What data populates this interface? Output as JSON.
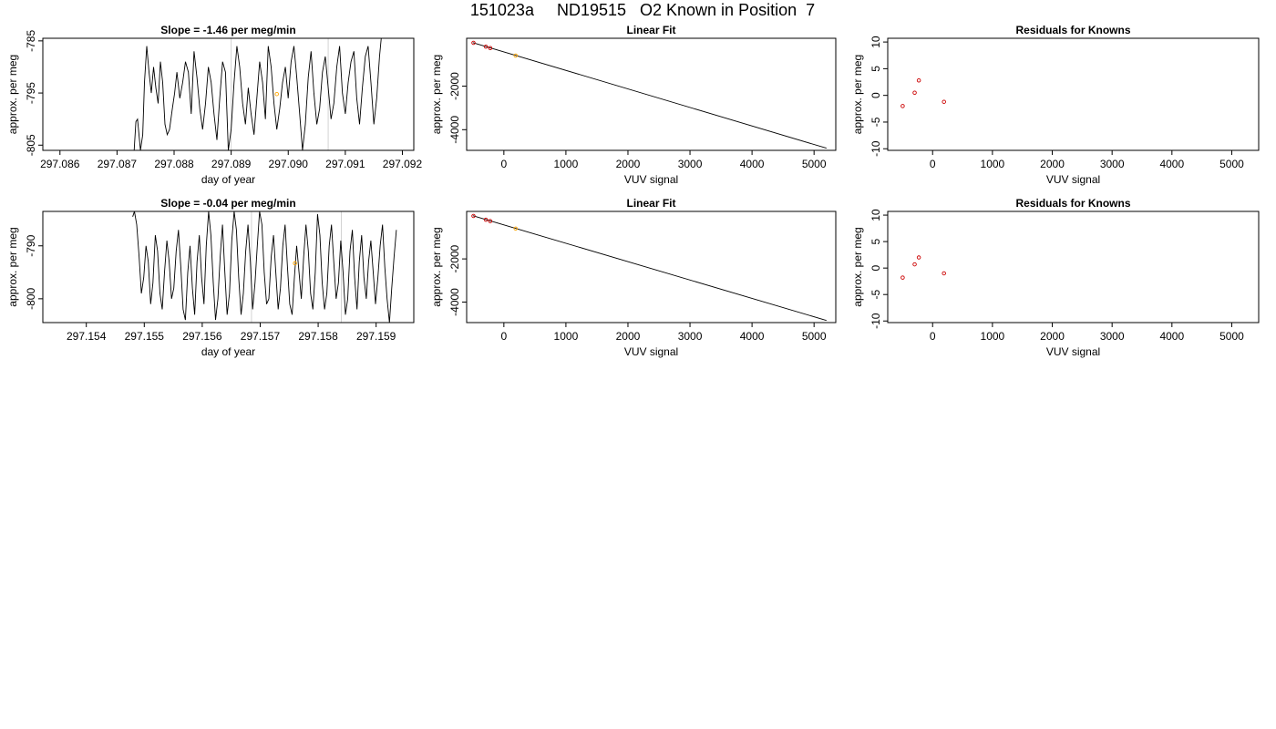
{
  "title": "151023a     ND19515   O2 Known in Position  7",
  "chart_data": [
    {
      "type": "line",
      "title": "Slope =  -1.46  per meg/min",
      "xlabel": "day of year",
      "ylabel": "approx. per meg",
      "xlim": [
        297.0857,
        297.0922
      ],
      "ylim": [
        -806,
        -784.5
      ],
      "xticks": [
        "297.086",
        "297.087",
        "297.088",
        "297.089",
        "297.090",
        "297.091",
        "297.092"
      ],
      "yticks": [
        "-785",
        "-795",
        "-805"
      ],
      "vlines": [
        297.089,
        297.0907
      ],
      "x": [
        297.0873,
        297.08733,
        297.08736,
        297.08741,
        297.08745,
        297.08748,
        297.08752,
        297.08756,
        297.0876,
        297.08764,
        297.08768,
        297.08772,
        297.08776,
        297.0878,
        297.08784,
        297.08788,
        297.08792,
        297.08797,
        297.08801,
        297.08805,
        297.0881,
        297.08815,
        297.0882,
        297.08825,
        297.0883,
        297.08835,
        297.0884,
        297.08845,
        297.0885,
        297.08855,
        297.0886,
        297.08865,
        297.0887,
        297.08875,
        297.0888,
        297.08885,
        297.0889,
        297.08895,
        297.089,
        297.08905,
        297.0891,
        297.08915,
        297.0892,
        297.08925,
        297.0893,
        297.08935,
        297.0894,
        297.08945,
        297.0895,
        297.08955,
        297.0896,
        297.08965,
        297.0897,
        297.08975,
        297.0898,
        297.08985,
        297.0899,
        297.08995,
        297.09,
        297.09005,
        297.0901,
        297.09015,
        297.0902,
        297.09025,
        297.0903,
        297.09035,
        297.0904,
        297.09045,
        297.0905,
        297.09055,
        297.0906,
        297.09065,
        297.0907,
        297.09075,
        297.0908,
        297.09085,
        297.0909,
        297.09095,
        297.091,
        297.09105,
        297.0911,
        297.09115,
        297.0912,
        297.09125,
        297.0913,
        297.09135,
        297.0914,
        297.09145,
        297.0915,
        297.09155,
        297.0916,
        297.09163
      ],
      "y": [
        -806,
        -800.5,
        -800,
        -806,
        -803,
        -793,
        -786,
        -791,
        -795,
        -790,
        -794,
        -797,
        -789,
        -793,
        -801,
        -803,
        -802,
        -798,
        -795,
        -791,
        -796,
        -793,
        -789,
        -791,
        -799,
        -787,
        -792,
        -798,
        -802,
        -797,
        -790,
        -793,
        -799,
        -804,
        -796,
        -789,
        -791,
        -806,
        -802,
        -793,
        -786,
        -790,
        -797,
        -801,
        -794,
        -799,
        -803,
        -796,
        -789,
        -793,
        -800,
        -786,
        -790,
        -797,
        -802,
        -798,
        -793,
        -790,
        -796,
        -789,
        -786,
        -792,
        -799,
        -806,
        -801,
        -792,
        -787,
        -795,
        -801,
        -798,
        -791,
        -788,
        -794,
        -800,
        -797,
        -790,
        -786,
        -795,
        -799,
        -793,
        -789,
        -787,
        -796,
        -801,
        -794,
        -788,
        -786,
        -793,
        -801,
        -796,
        -788,
        -784.5
      ],
      "highlight_points": [
        {
          "x": 297.0898,
          "y": -795.2,
          "color": "#FFA500"
        }
      ]
    },
    {
      "type": "scatter",
      "title": "Linear Fit",
      "xlabel": "VUV signal",
      "ylabel": "approx. per meg",
      "xlim": [
        -600,
        5350
      ],
      "ylim": [
        -4950,
        200
      ],
      "xticks": [
        0,
        1000,
        2000,
        3000,
        4000,
        5000
      ],
      "yticks": [
        -2000,
        -4000
      ],
      "fit_line": {
        "x": [
          -500,
          5200
        ],
        "y": [
          0,
          -4850
        ]
      },
      "points": [
        {
          "x": -490,
          "y": -10,
          "color": "#CC0000"
        },
        {
          "x": -290,
          "y": -185,
          "color": "#CC0000"
        },
        {
          "x": -220,
          "y": -250,
          "color": "#CC0000"
        },
        {
          "x": 190,
          "y": -595,
          "color": "#FFA500"
        }
      ]
    },
    {
      "type": "scatter",
      "title": "Residuals for Knowns",
      "xlabel": "VUV signal",
      "ylabel": "approx. per meg",
      "xlim": [
        -750,
        5450
      ],
      "ylim": [
        -10.3,
        10.7
      ],
      "xticks": [
        0,
        1000,
        2000,
        3000,
        4000,
        5000
      ],
      "yticks": [
        10,
        5,
        0,
        -5,
        -10
      ],
      "points": [
        {
          "x": -500,
          "y": -2.0,
          "color": "#CC0000"
        },
        {
          "x": -300,
          "y": 0.5,
          "color": "#CC0000"
        },
        {
          "x": -230,
          "y": 2.8,
          "color": "#CC0000"
        },
        {
          "x": 190,
          "y": -1.2,
          "color": "#CC0000"
        }
      ]
    },
    {
      "type": "line",
      "title": "Slope =  -0.04  per meg/min",
      "xlabel": "day of year",
      "ylabel": "approx. per meg",
      "xlim": [
        297.15325,
        297.15965
      ],
      "ylim": [
        -804.5,
        -783.5
      ],
      "xticks": [
        "297.154",
        "297.155",
        "297.156",
        "297.157",
        "297.158",
        "297.159"
      ],
      "yticks": [
        "-790",
        "-800"
      ],
      "vlines": [
        297.15685,
        297.1584
      ],
      "x": [
        297.1548,
        297.15483,
        297.15487,
        297.15491,
        297.15495,
        297.15499,
        297.15503,
        297.15507,
        297.15511,
        297.15515,
        297.15519,
        297.15523,
        297.15527,
        297.15531,
        297.15535,
        297.15539,
        297.15543,
        297.15547,
        297.15551,
        297.15555,
        297.15559,
        297.15563,
        297.15567,
        297.15571,
        297.15575,
        297.15579,
        297.15583,
        297.15587,
        297.15591,
        297.15595,
        297.15599,
        297.15603,
        297.15607,
        297.15611,
        297.15615,
        297.15619,
        297.15623,
        297.15627,
        297.15631,
        297.15635,
        297.15639,
        297.15643,
        297.15647,
        297.15651,
        297.15655,
        297.15659,
        297.15663,
        297.15667,
        297.15671,
        297.15675,
        297.15679,
        297.15683,
        297.15687,
        297.15691,
        297.15695,
        297.15699,
        297.15703,
        297.15707,
        297.15711,
        297.15715,
        297.15719,
        297.15723,
        297.15727,
        297.15731,
        297.15735,
        297.15739,
        297.15743,
        297.15747,
        297.15751,
        297.15755,
        297.15759,
        297.15763,
        297.15767,
        297.15771,
        297.15775,
        297.15779,
        297.15783,
        297.15787,
        297.15791,
        297.15795,
        297.15799,
        297.15803,
        297.15807,
        297.15811,
        297.15815,
        297.15819,
        297.15823,
        297.15827,
        297.15831,
        297.15835,
        297.15839,
        297.15843,
        297.15847,
        297.15851,
        297.15855,
        297.15859,
        297.15863,
        297.15867,
        297.15871,
        297.15875,
        297.15879,
        297.15883,
        297.15887,
        297.15891,
        297.15895,
        297.15899,
        297.15903,
        297.15907,
        297.15911,
        297.15915,
        297.15919,
        297.15923,
        297.15927,
        297.15931,
        297.15935
      ],
      "y": [
        -784.5,
        -783.5,
        -786,
        -792,
        -799,
        -796,
        -790,
        -793,
        -801,
        -797,
        -788,
        -791,
        -799,
        -802,
        -795,
        -789,
        -793,
        -800,
        -798,
        -791,
        -787,
        -794,
        -802,
        -804,
        -795,
        -790,
        -798,
        -803,
        -793,
        -788,
        -796,
        -801,
        -790,
        -783.5,
        -788,
        -797,
        -804,
        -800,
        -792,
        -786,
        -795,
        -803,
        -799,
        -789,
        -783.5,
        -787,
        -796,
        -803,
        -799,
        -791,
        -786,
        -793,
        -802,
        -797,
        -790,
        -783.5,
        -786,
        -795,
        -801,
        -800,
        -792,
        -788,
        -795,
        -802,
        -798,
        -790,
        -786,
        -794,
        -801,
        -803,
        -796,
        -790,
        -795,
        -800,
        -792,
        -786,
        -791,
        -799,
        -802,
        -795,
        -784,
        -788,
        -797,
        -802,
        -799,
        -790,
        -786,
        -793,
        -800,
        -797,
        -789,
        -795,
        -803,
        -800,
        -791,
        -787,
        -796,
        -802,
        -793,
        -788,
        -796,
        -800,
        -793,
        -789,
        -795,
        -801,
        -796,
        -790,
        -786,
        -794,
        -800,
        -804.5,
        -798,
        -792,
        -787
      ],
      "highlight_points": [
        {
          "x": 297.1576,
          "y": -793.3,
          "color": "#FFA500"
        }
      ]
    },
    {
      "type": "scatter",
      "title": "Linear Fit",
      "xlabel": "VUV signal",
      "ylabel": "approx. per meg",
      "xlim": [
        -600,
        5350
      ],
      "ylim": [
        -4950,
        200
      ],
      "xticks": [
        0,
        1000,
        2000,
        3000,
        4000,
        5000
      ],
      "yticks": [
        -2000,
        -4000
      ],
      "fit_line": {
        "x": [
          -500,
          5200
        ],
        "y": [
          0,
          -4850
        ]
      },
      "points": [
        {
          "x": -490,
          "y": -10,
          "color": "#CC0000"
        },
        {
          "x": -290,
          "y": -185,
          "color": "#CC0000"
        },
        {
          "x": -220,
          "y": -250,
          "color": "#CC0000"
        },
        {
          "x": 190,
          "y": -595,
          "color": "#FFA500"
        }
      ]
    },
    {
      "type": "scatter",
      "title": "Residuals for Knowns",
      "xlabel": "VUV signal",
      "ylabel": "approx. per meg",
      "xlim": [
        -750,
        5450
      ],
      "ylim": [
        -10.3,
        10.7
      ],
      "xticks": [
        0,
        1000,
        2000,
        3000,
        4000,
        5000
      ],
      "yticks": [
        10,
        5,
        0,
        -5,
        -10
      ],
      "points": [
        {
          "x": -500,
          "y": -1.8,
          "color": "#CC0000"
        },
        {
          "x": -300,
          "y": 0.7,
          "color": "#CC0000"
        },
        {
          "x": -230,
          "y": 2.0,
          "color": "#CC0000"
        },
        {
          "x": 190,
          "y": -1.0,
          "color": "#CC0000"
        }
      ]
    }
  ]
}
